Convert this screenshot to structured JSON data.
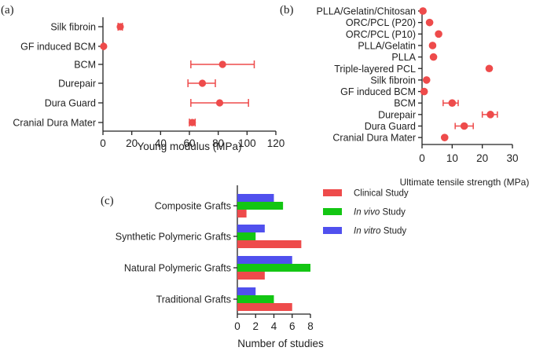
{
  "colors": {
    "clinical": "#ee4b4b",
    "invivo": "#13c613",
    "invitro": "#5050ee",
    "marker": "#ee4b4b",
    "axis": "#222222"
  },
  "chart_data": [
    {
      "panel": "(a)",
      "type": "scatter",
      "orientation": "horizontal",
      "xlabel": "Young modulus (MPa)",
      "xlim": [
        0,
        120
      ],
      "xticks": [
        0,
        20,
        40,
        60,
        80,
        100,
        120
      ],
      "categories": [
        "Silk fibroin",
        "GF induced BCM",
        "BCM",
        "Durepair",
        "Dura Guard",
        "Cranial Dura Mater"
      ],
      "values": [
        12,
        0.5,
        83,
        69,
        81,
        62
      ],
      "err_low": [
        10.5,
        0.5,
        61,
        59,
        61,
        60
      ],
      "err_high": [
        13.5,
        0.5,
        105,
        78,
        101,
        64
      ]
    },
    {
      "panel": "(b)",
      "type": "scatter",
      "orientation": "horizontal",
      "xlabel": "Ultimate tensile strength (MPa)",
      "xlim": [
        0,
        30
      ],
      "xticks": [
        0,
        10,
        20,
        30
      ],
      "categories": [
        "PLLA/Gelatin/Chitosan",
        "ORC/PCL (P20)",
        "ORC/PCL (P10)",
        "PLLA/Gelatin",
        "PLLA",
        "Triple-layered PCL",
        "Silk fibroin",
        "GF induced BCM",
        "BCM",
        "Durepair",
        "Dura Guard",
        "Cranial Dura Mater"
      ],
      "values": [
        0.3,
        2.5,
        5.5,
        3.5,
        3.8,
        22.3,
        1.5,
        0.7,
        10,
        22.7,
        14,
        7.5
      ],
      "err_low": [
        0.3,
        2.5,
        5.5,
        3.5,
        3.8,
        22.3,
        1.5,
        0.7,
        7,
        20,
        11,
        7
      ],
      "err_high": [
        0.3,
        2.5,
        5.5,
        3.5,
        3.8,
        22.3,
        1.5,
        0.7,
        12,
        25,
        17,
        8
      ]
    },
    {
      "panel": "(c)",
      "type": "bar",
      "orientation": "horizontal",
      "xlabel": "Number of studies",
      "xlim": [
        0,
        8
      ],
      "xticks": [
        0,
        2,
        4,
        6,
        8
      ],
      "categories": [
        "Composite Grafts",
        "Synthetic Polymeric Grafts",
        "Natural Polymeric Grafts",
        "Traditional Grafts"
      ],
      "series": [
        {
          "name": "In vitro",
          "legend_italic": "In vitro",
          "legend_rest": " Study",
          "values": [
            4,
            3,
            6,
            2
          ]
        },
        {
          "name": "In vivo",
          "legend_italic": "In vivo",
          "legend_rest": " Study",
          "values": [
            5,
            2,
            8,
            4
          ]
        },
        {
          "name": "Clinical",
          "legend_italic": "",
          "legend_rest": "Clinical Study",
          "values": [
            1,
            7,
            3,
            6
          ]
        }
      ],
      "legend_order": [
        "Clinical",
        "In vivo",
        "In vitro"
      ]
    }
  ]
}
